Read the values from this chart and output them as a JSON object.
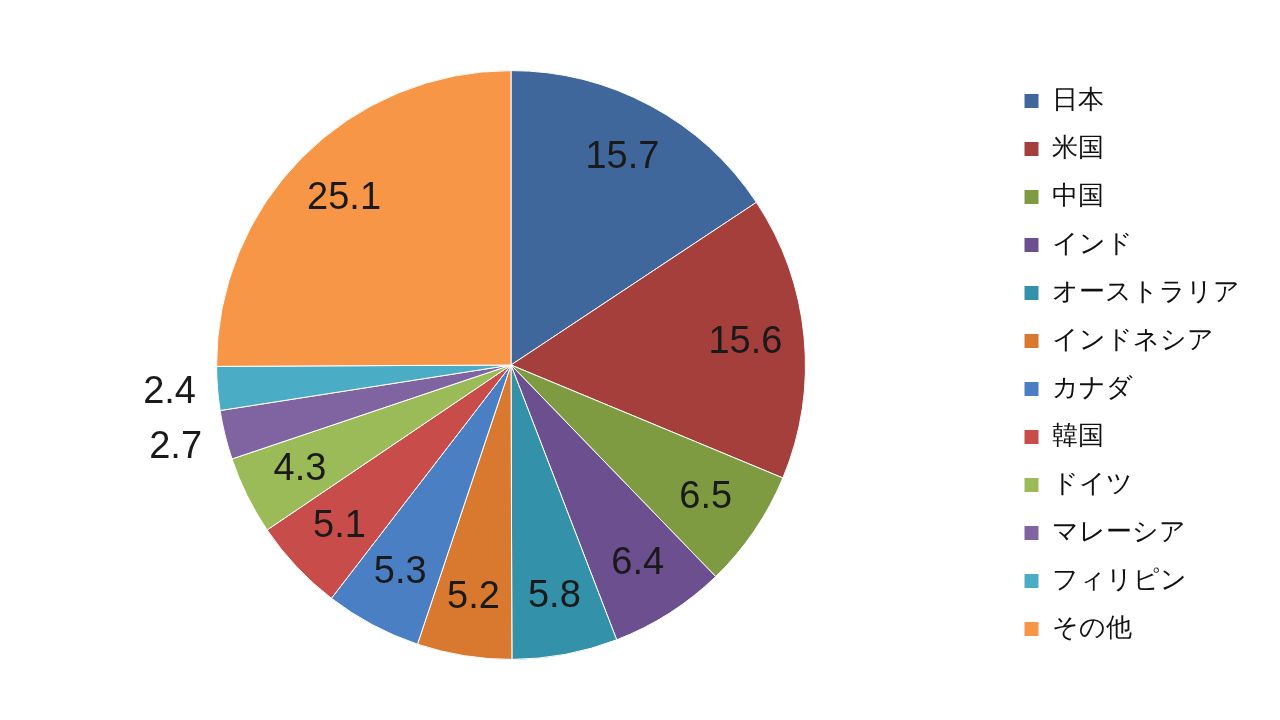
{
  "chart_data": {
    "type": "pie",
    "categories": [
      "日本",
      "米国",
      "中国",
      "インド",
      "オーストラリア",
      "インドネシア",
      "カナダ",
      "韓国",
      "ドイツ",
      "マレーシア",
      "フィリピン",
      "その他"
    ],
    "values": [
      15.7,
      15.6,
      6.5,
      6.4,
      5.8,
      5.2,
      5.3,
      5.1,
      4.3,
      2.7,
      2.4,
      25.1
    ],
    "colors": [
      "#3f679c",
      "#a53f3b",
      "#7e9b41",
      "#6b4f8f",
      "#3491aa",
      "#d9782f",
      "#4a7fc4",
      "#c84d4a",
      "#9bbb59",
      "#8064a2",
      "#4bacc6",
      "#f79646"
    ],
    "data_labels": true,
    "legend": "right"
  }
}
